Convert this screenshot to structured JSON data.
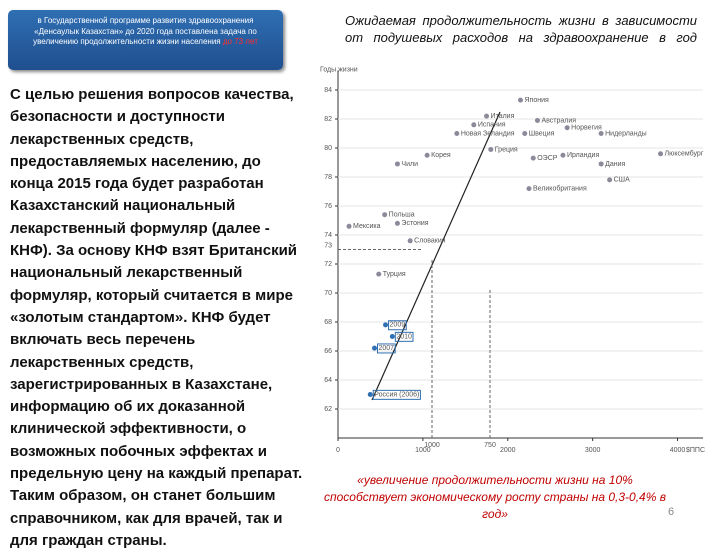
{
  "header_box": {
    "text": "в Государственной программе развития здравоохранения «Денсаулык Казахстан» до 2020 года поставлена задача по увеличению продолжительности жизни населения",
    "highlight": "до 73 лет"
  },
  "body": "С целью решения вопросов качества, безопасности и доступности лекарственных средств, предоставляемых населению, до конца 2015 года будет разработан Казахстанский национальный лекарственный формуляр (далее - КНФ). За основу КНФ взят Британский национальный лекарственный формуляр, который считается в мире «золотым стандартом». КНФ будет включать весь перечень лекарственных средств, зарегистрированных в Казахстане, информацию об их доказанной клинической эффективности, о возможных побочных эффектах и предельную цену на каждый препарат. Таким образом, он станет большим справочником, как для врачей, так и для граждан страны.",
  "quote": "«увеличение продолжительности жизни на 10% способствует экономическому росту страны на 0,3-0,4% в год»",
  "page_number": "6",
  "chart_data": {
    "type": "scatter",
    "title": "Ожидаемая продолжительность жизни в зависимости от подушевых расходов на здравоохранение в год",
    "y_label": "Годы жизни",
    "x_label": "$ППС",
    "xlim": [
      0,
      4300
    ],
    "ylim": [
      60,
      85
    ],
    "xticks": [
      0,
      1000,
      2000,
      3000,
      4000
    ],
    "yticks": [
      62,
      64,
      66,
      68,
      70,
      72,
      74,
      76,
      78,
      80,
      82,
      84
    ],
    "series": [
      {
        "color": "#8a8a9a",
        "x": [
          2150,
          1750,
          1600,
          2350,
          2200,
          2700,
          1400,
          3100,
          3800,
          2300,
          700,
          1050,
          1800,
          2650,
          3100,
          3200,
          2250,
          130,
          550,
          700,
          850,
          480
        ],
        "values": [
          83.3,
          82.2,
          81.6,
          81.9,
          81.0,
          81.4,
          81.0,
          81.0,
          79.6,
          79.3,
          78.9,
          79.5,
          79.9,
          79.5,
          78.9,
          77.8,
          77.2,
          74.6,
          75.4,
          74.8,
          73.6,
          71.3
        ],
        "labels": [
          "Япония",
          "Италия",
          "Испания",
          "Австралия",
          "Швеция",
          "Норвегия",
          "Новая Зеландия",
          "Нидерланды",
          "Люксембург",
          "ОЭСР",
          "Чили",
          "Корея",
          "Греция",
          "Ирландия",
          "Дания",
          "США",
          "Великобритания",
          "Мексика",
          "Польша",
          "Эстония",
          "Словакия",
          "Турция"
        ]
      },
      {
        "color": "#2f6fb3",
        "x": [
          560,
          640,
          430,
          380
        ],
        "values": [
          67.8,
          67.0,
          66.2,
          63.0
        ],
        "labels": [
          "2009",
          "2010",
          "2007",
          "Россия (2006)"
        ]
      }
    ],
    "target": {
      "y": 73,
      "label": "73"
    },
    "x_marks": [
      "1000",
      "750"
    ]
  }
}
